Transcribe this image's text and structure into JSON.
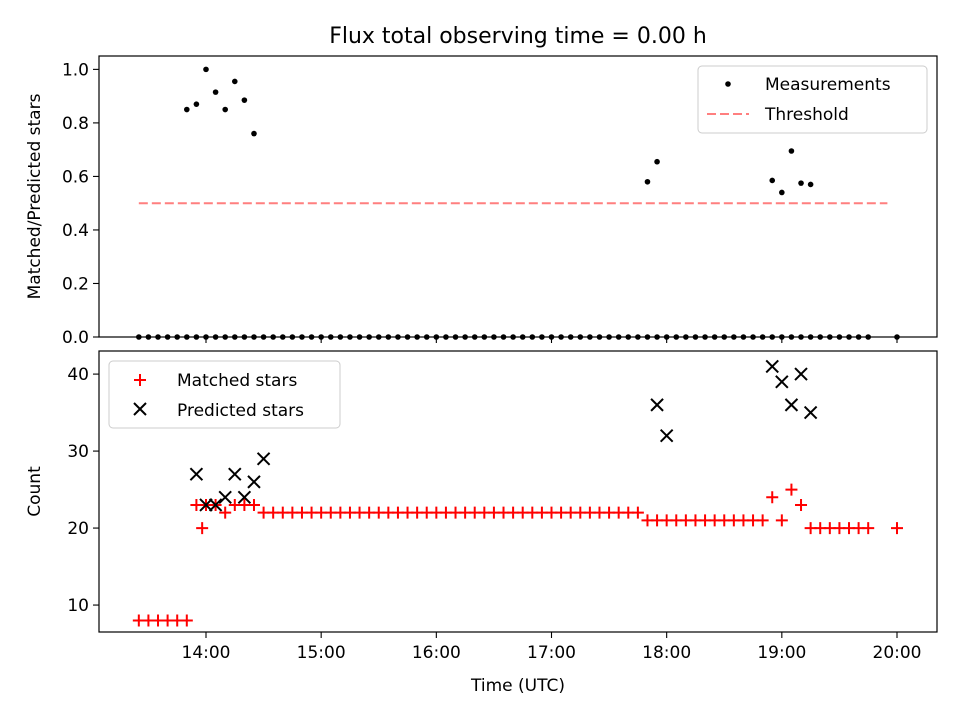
{
  "title": "Flux total observing time = 0.00 h",
  "chart_data": [
    {
      "type": "scatter",
      "ylabel": "Matched/Predicted stars",
      "xlabel": "",
      "ylim": [
        0,
        1.05
      ],
      "yticks": [
        0.0,
        0.2,
        0.4,
        0.6,
        0.8,
        1.0
      ],
      "ytick_labels": [
        "0.0",
        "0.2",
        "0.4",
        "0.6",
        "0.8",
        "1.0"
      ],
      "legend_position": "top-right",
      "grid": false,
      "series": [
        {
          "name": "Measurements",
          "color": "#000000",
          "marker": "dot",
          "x": [
            "13:25",
            "13:30",
            "13:35",
            "13:40",
            "13:45",
            "13:50",
            "13:55",
            "14:00",
            "14:05",
            "14:10",
            "14:15",
            "14:20",
            "14:25",
            "14:30",
            "14:35",
            "14:40",
            "14:45",
            "14:50",
            "14:55",
            "15:00",
            "15:05",
            "15:10",
            "15:15",
            "15:20",
            "15:25",
            "15:30",
            "15:35",
            "15:40",
            "15:45",
            "15:50",
            "15:55",
            "16:00",
            "16:05",
            "16:10",
            "16:15",
            "16:20",
            "16:25",
            "16:30",
            "16:35",
            "16:40",
            "16:45",
            "16:50",
            "16:55",
            "17:00",
            "17:05",
            "17:10",
            "17:15",
            "17:20",
            "17:25",
            "17:30",
            "17:35",
            "17:40",
            "17:45",
            "17:50",
            "17:55",
            "18:00",
            "18:05",
            "18:10",
            "18:15",
            "18:20",
            "18:25",
            "18:30",
            "18:35",
            "18:40",
            "18:45",
            "18:50",
            "18:55",
            "19:00",
            "19:05",
            "19:10",
            "19:15",
            "19:20",
            "19:25",
            "19:30",
            "19:35",
            "19:40",
            "19:45",
            "20:00",
            "13:50",
            "13:55",
            "14:00",
            "14:05",
            "14:10",
            "14:15",
            "14:20",
            "14:25",
            "17:50",
            "17:55",
            "18:55",
            "19:00",
            "19:05",
            "19:10",
            "19:15"
          ],
          "y": [
            0,
            0,
            0,
            0,
            0,
            0,
            0,
            0,
            0,
            0,
            0,
            0,
            0,
            0,
            0,
            0,
            0,
            0,
            0,
            0,
            0,
            0,
            0,
            0,
            0,
            0,
            0,
            0,
            0,
            0,
            0,
            0,
            0,
            0,
            0,
            0,
            0,
            0,
            0,
            0,
            0,
            0,
            0,
            0,
            0,
            0,
            0,
            0,
            0,
            0,
            0,
            0,
            0,
            0,
            0,
            0,
            0,
            0,
            0,
            0,
            0,
            0,
            0,
            0,
            0,
            0,
            0,
            0,
            0,
            0,
            0,
            0,
            0,
            0,
            0,
            0,
            0,
            0,
            0.85,
            0.87,
            1.0,
            0.915,
            0.85,
            0.955,
            0.885,
            0.76,
            0.58,
            0.655,
            0.585,
            0.54,
            0.695,
            0.575,
            0.57
          ]
        },
        {
          "name": "Threshold",
          "color": "#ff7f7f",
          "style": "dashed",
          "x": [
            "13:25",
            "19:55"
          ],
          "y": [
            0.5,
            0.5
          ]
        }
      ]
    },
    {
      "type": "scatter",
      "ylabel": "Count",
      "xlabel": "Time (UTC)",
      "ylim": [
        6.5,
        43
      ],
      "yticks": [
        10,
        20,
        30,
        40
      ],
      "ytick_labels": [
        "10",
        "20",
        "30",
        "40"
      ],
      "xticks": [
        "14:00",
        "15:00",
        "16:00",
        "17:00",
        "18:00",
        "19:00",
        "20:00"
      ],
      "legend_position": "top-left",
      "grid": false,
      "series": [
        {
          "name": "Matched stars",
          "color": "#ff0000",
          "marker": "plus",
          "x": [
            "13:25",
            "13:30",
            "13:35",
            "13:40",
            "13:45",
            "13:50",
            "13:55",
            "13:58",
            "14:00",
            "14:05",
            "14:10",
            "14:15",
            "14:20",
            "14:25",
            "14:30",
            "14:35",
            "14:40",
            "14:45",
            "14:50",
            "14:55",
            "15:00",
            "15:05",
            "15:10",
            "15:15",
            "15:20",
            "15:25",
            "15:30",
            "15:35",
            "15:40",
            "15:45",
            "15:50",
            "15:55",
            "16:00",
            "16:05",
            "16:10",
            "16:15",
            "16:20",
            "16:25",
            "16:30",
            "16:35",
            "16:40",
            "16:45",
            "16:50",
            "16:55",
            "17:00",
            "17:05",
            "17:10",
            "17:15",
            "17:20",
            "17:25",
            "17:30",
            "17:35",
            "17:40",
            "17:45",
            "17:50",
            "17:55",
            "18:00",
            "18:05",
            "18:10",
            "18:15",
            "18:20",
            "18:25",
            "18:30",
            "18:35",
            "18:40",
            "18:45",
            "18:50",
            "18:55",
            "19:00",
            "19:05",
            "19:10",
            "19:15",
            "19:20",
            "19:25",
            "19:30",
            "19:35",
            "19:40",
            "19:45",
            "20:00"
          ],
          "y": [
            8,
            8,
            8,
            8,
            8,
            8,
            23,
            20,
            23,
            23,
            22,
            23,
            23,
            23,
            22,
            22,
            22,
            22,
            22,
            22,
            22,
            22,
            22,
            22,
            22,
            22,
            22,
            22,
            22,
            22,
            22,
            22,
            22,
            22,
            22,
            22,
            22,
            22,
            22,
            22,
            22,
            22,
            22,
            22,
            22,
            22,
            22,
            22,
            22,
            22,
            22,
            22,
            22,
            22,
            21,
            21,
            21,
            21,
            21,
            21,
            21,
            21,
            21,
            21,
            21,
            21,
            21,
            24,
            21,
            25,
            23,
            20,
            20,
            20,
            20,
            20,
            20,
            20,
            20
          ]
        },
        {
          "name": "Predicted stars",
          "color": "#000000",
          "marker": "x",
          "x": [
            "13:55",
            "14:00",
            "14:05",
            "14:10",
            "14:15",
            "14:20",
            "14:25",
            "14:30",
            "17:55",
            "18:00",
            "18:55",
            "19:00",
            "19:05",
            "19:10",
            "19:15"
          ],
          "y": [
            27,
            23,
            23,
            24,
            27,
            24,
            26,
            29,
            36,
            32,
            41,
            39,
            36,
            40,
            35
          ]
        }
      ]
    }
  ]
}
